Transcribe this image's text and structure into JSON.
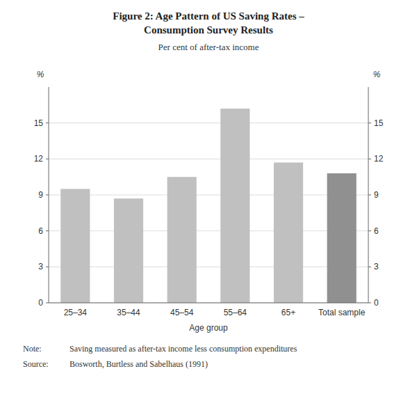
{
  "chart_data": {
    "type": "bar",
    "title": [
      "Figure 2: Age Pattern of US Saving Rates –",
      "Consumption Survey Results"
    ],
    "subtitle": "Per cent of after-tax income",
    "categories": [
      "25–34",
      "35–44",
      "45–54",
      "55–64",
      "65+",
      "Total sample"
    ],
    "values": [
      9.5,
      8.7,
      10.5,
      16.2,
      11.7,
      10.8
    ],
    "colors": [
      "#c0c0c0",
      "#c0c0c0",
      "#c0c0c0",
      "#c0c0c0",
      "#c0c0c0",
      "#909090"
    ],
    "xlabel": "Age group",
    "ylabel": "%",
    "y2label": "%",
    "ylim": [
      0,
      18
    ],
    "yticks": [
      0,
      3,
      6,
      9,
      12,
      15
    ],
    "y2lim": [
      0,
      18
    ],
    "y2ticks": [
      0,
      3,
      6,
      9,
      12,
      15
    ],
    "grid": true,
    "annotations": [
      {
        "label": "Note:",
        "text": "Saving measured as after-tax income less consumption expenditures"
      },
      {
        "label": "Source:",
        "text": "Bosworth, Burtless and Sabelhaus (1991)"
      }
    ]
  }
}
